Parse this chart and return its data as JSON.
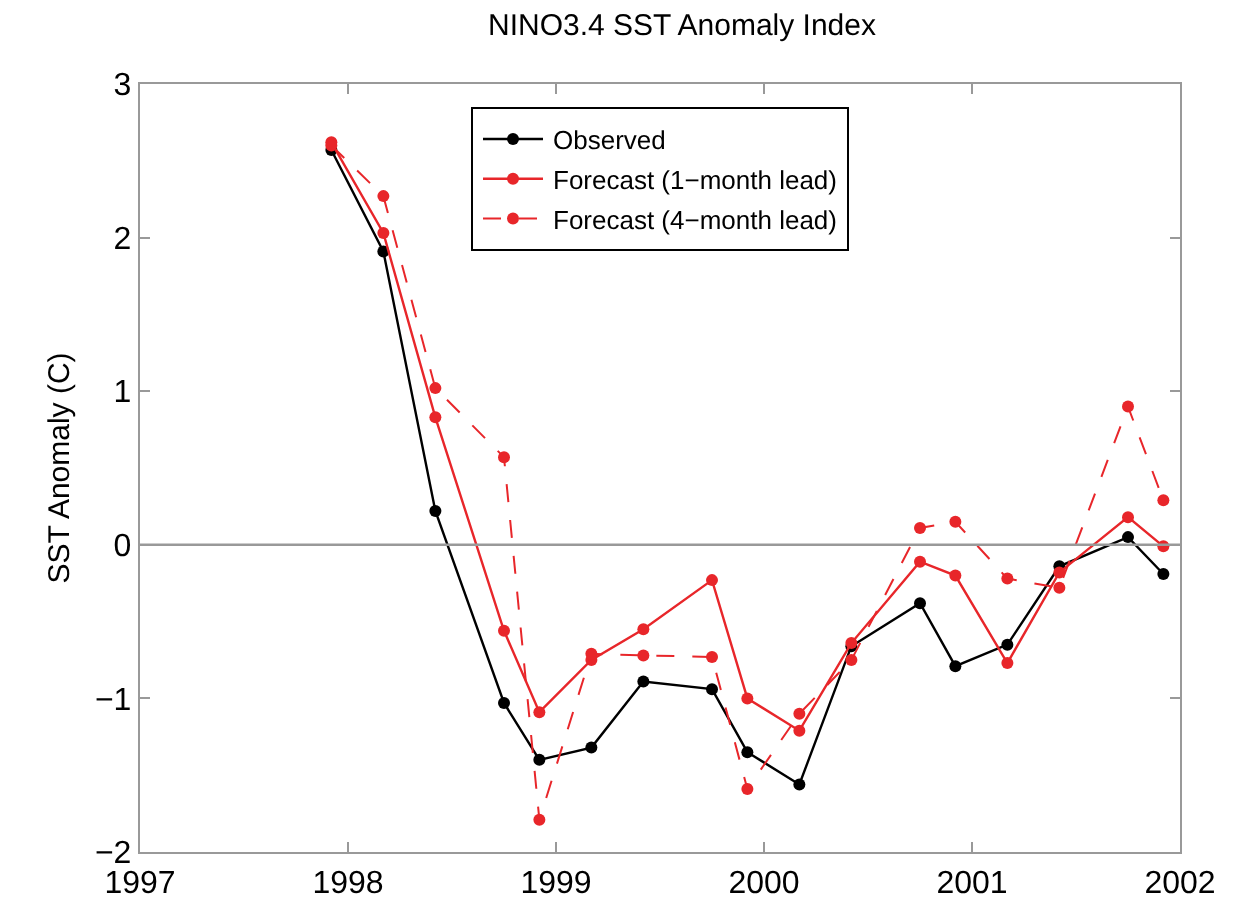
{
  "chart_data": {
    "type": "line",
    "title": "NINO3.4 SST Anomaly Index",
    "ylabel": "SST Anomaly (C)",
    "x": [
      1997.92,
      1998.17,
      1998.42,
      1998.75,
      1998.92,
      1999.17,
      1999.42,
      1999.75,
      1999.92,
      2000.17,
      2000.42,
      2000.75,
      2000.92,
      2001.17,
      2001.42,
      2001.75,
      2001.92
    ],
    "series": [
      {
        "name": "Observed",
        "color": "#000000",
        "line_style": "solid",
        "values": [
          2.57,
          1.91,
          0.22,
          -1.03,
          -1.4,
          -1.32,
          -0.89,
          -0.94,
          -1.35,
          -1.56,
          -0.66,
          -0.38,
          -0.79,
          -0.65,
          -0.14,
          0.05,
          -0.19
        ]
      },
      {
        "name": "Forecast (1−month lead)",
        "color": "#e8262a",
        "line_style": "solid",
        "values": [
          2.62,
          2.03,
          0.83,
          -0.56,
          -1.09,
          -0.75,
          -0.55,
          -0.23,
          -1.0,
          -1.21,
          -0.64,
          -0.11,
          -0.2,
          -0.77,
          -0.18,
          0.18,
          -0.01
        ]
      },
      {
        "name": "Forecast (4−month lead)",
        "color": "#e8262a",
        "line_style": "dashed",
        "values": [
          2.6,
          2.27,
          1.02,
          0.57,
          -1.79,
          -0.71,
          -0.72,
          -0.73,
          -1.59,
          -1.1,
          -0.75,
          0.11,
          0.15,
          -0.22,
          -0.28,
          0.9,
          0.29
        ]
      }
    ],
    "xlim": [
      1997,
      2002
    ],
    "xticks": [
      1997,
      1998,
      1999,
      2000,
      2001,
      2002
    ],
    "ylim": [
      -2,
      3
    ],
    "yticks": [
      -2,
      -1,
      0,
      1,
      2,
      3
    ],
    "ref_lines": [
      {
        "axis": "y",
        "value": 0,
        "color": "#999999"
      }
    ],
    "grid": false,
    "legend": "top",
    "marker": "circle"
  }
}
